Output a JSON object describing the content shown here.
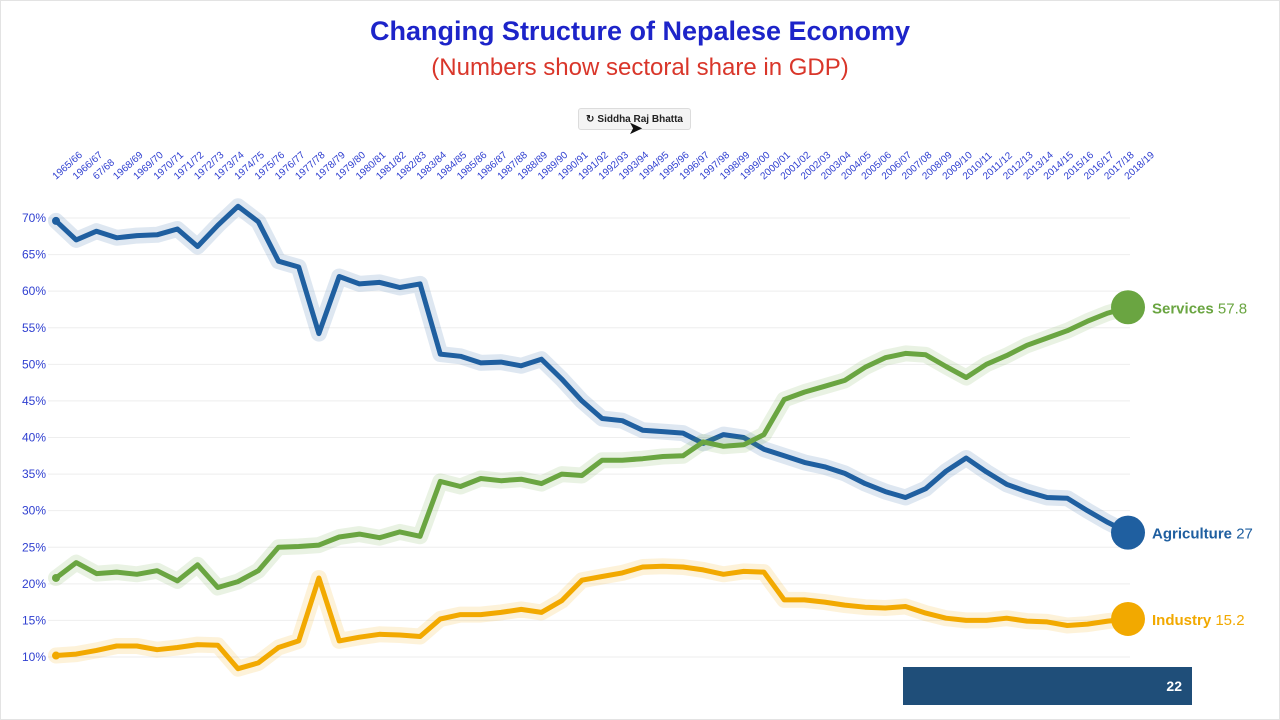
{
  "chart_data": {
    "type": "line",
    "title": "Changing Structure of Nepalese Economy",
    "subtitle": "(Numbers show sectoral share in GDP)",
    "ylim": [
      8,
      72
    ],
    "yticks": [
      "70%",
      "65%",
      "60%",
      "55%",
      "50%",
      "45%",
      "40%",
      "35%",
      "30%",
      "25%",
      "20%",
      "15%",
      "10%"
    ],
    "ytick_values": [
      70,
      65,
      60,
      55,
      50,
      45,
      40,
      35,
      30,
      25,
      20,
      15,
      10
    ],
    "grid": true,
    "categories": [
      "1965/66",
      "1966/67",
      "67/68",
      "1968/69",
      "1969/70",
      "1970/71",
      "1971/72",
      "1972/73",
      "1973/74",
      "1974/75",
      "1975/76",
      "1976/77",
      "1977/78",
      "1978/79",
      "1979/80",
      "1980/81",
      "1981/82",
      "1982/83",
      "1983/84",
      "1984/85",
      "1985/86",
      "1986/87",
      "1987/88",
      "1988/89",
      "1989/90",
      "1990/91",
      "1991/92",
      "1992/93",
      "1993/94",
      "1994/95",
      "1995/96",
      "1996/97",
      "1997/98",
      "1998/99",
      "1999/00",
      "2000/01",
      "2001/02",
      "2002/03",
      "2003/04",
      "2004/05",
      "2005/06",
      "2006/07",
      "2007/08",
      "2008/09",
      "2009/10",
      "2010/11",
      "2011/12",
      "2012/13",
      "2013/14",
      "2014/15",
      "2015/16",
      "2016/17",
      "2017/18",
      "2018/19"
    ],
    "series": [
      {
        "name": "Agriculture",
        "color": "#1f5fa0",
        "end_value": "27",
        "values": [
          69.6,
          67.0,
          68.2,
          67.3,
          67.6,
          67.7,
          68.5,
          66.1,
          69.0,
          71.6,
          69.5,
          64.1,
          63.3,
          54.2,
          62.0,
          61.0,
          61.2,
          60.5,
          61.0,
          51.4,
          51.1,
          50.2,
          50.3,
          49.8,
          50.7,
          48.0,
          45.0,
          42.6,
          42.3,
          41.0,
          40.8,
          40.6,
          39.2,
          40.4,
          40.0,
          38.4,
          37.5,
          36.6,
          36.0,
          35.1,
          33.7,
          32.6,
          31.8,
          33.0,
          35.4,
          37.2,
          35.3,
          33.6,
          32.6,
          31.8,
          31.7,
          30.0,
          28.4,
          27.0
        ]
      },
      {
        "name": "Services",
        "color": "#6aa541",
        "end_value": "57.8",
        "values": [
          20.8,
          22.9,
          21.4,
          21.6,
          21.3,
          21.8,
          20.4,
          22.6,
          19.5,
          20.3,
          21.8,
          25.0,
          25.1,
          25.3,
          26.4,
          26.8,
          26.3,
          27.1,
          26.5,
          34.0,
          33.3,
          34.4,
          34.1,
          34.3,
          33.7,
          35.0,
          34.8,
          36.9,
          36.9,
          37.1,
          37.4,
          37.5,
          39.4,
          38.8,
          39.0,
          40.4,
          45.2,
          46.2,
          47.0,
          47.8,
          49.6,
          50.9,
          51.5,
          51.3,
          49.7,
          48.2,
          50.0,
          51.2,
          52.6,
          53.6,
          54.6,
          55.9,
          57.0,
          57.8
        ]
      },
      {
        "name": "Industry",
        "color": "#f2a900",
        "end_value": "15.2",
        "values": [
          10.2,
          10.4,
          10.9,
          11.5,
          11.5,
          11.0,
          11.3,
          11.7,
          11.6,
          8.4,
          9.2,
          11.3,
          12.2,
          20.8,
          12.2,
          12.7,
          13.1,
          13.0,
          12.8,
          15.2,
          15.8,
          15.8,
          16.1,
          16.5,
          16.1,
          17.7,
          20.5,
          21.0,
          21.5,
          22.3,
          22.4,
          22.3,
          21.9,
          21.3,
          21.7,
          21.6,
          17.8,
          17.8,
          17.5,
          17.1,
          16.8,
          16.7,
          16.9,
          16.0,
          15.3,
          15.0,
          15.0,
          15.3,
          14.9,
          14.8,
          14.3,
          14.5,
          14.9,
          15.2
        ]
      }
    ]
  },
  "credit_label": "Siddha Raj Bhatta",
  "credit_icon": "reload-icon",
  "slide_number": "22"
}
